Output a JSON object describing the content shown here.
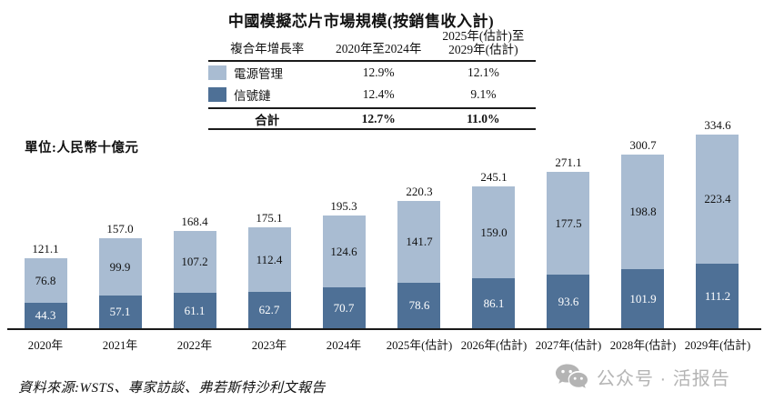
{
  "title": "中國模擬芯片市場規模(按銷售收入計)",
  "table": {
    "header": {
      "col1": "複合年增長率",
      "col2": "2020年至2024年",
      "col3_line1": "2025年(估計)至",
      "col3_line2": "2029年(估計)"
    },
    "rows": [
      {
        "label": "電源管理",
        "cagr_2020_2024": "12.9%",
        "cagr_2025_2029": "12.1%"
      },
      {
        "label": "信號鏈",
        "cagr_2020_2024": "12.4%",
        "cagr_2025_2029": "9.1%"
      }
    ],
    "total": {
      "label": "合計",
      "cagr_2020_2024": "12.7%",
      "cagr_2025_2029": "11.0%"
    }
  },
  "unit_label": "單位:人民幣十億元",
  "source": "資料來源:WSTS、專家訪談、弗若斯特沙利文報告",
  "watermark": {
    "icon": "wechat-icon",
    "text": "公众号 · 活报告",
    "color": "#b4b4b4"
  },
  "colors": {
    "power_management": "#a9bcd2",
    "signal_chain": "#4e7096",
    "axis": "#1a1a1a"
  },
  "chart_data": {
    "type": "bar",
    "stacked": true,
    "title": "中國模擬芯片市場規模(按銷售收入計)",
    "ylabel": "人民幣十億元",
    "grid": false,
    "legend_position": "table-top-left",
    "categories": [
      "2020年",
      "2021年",
      "2022年",
      "2023年",
      "2024年",
      "2025年(估計)",
      "2026年(估計)",
      "2027年(估計)",
      "2028年(估計)",
      "2029年(估計)"
    ],
    "series": [
      {
        "name": "信號鏈",
        "color": "#4e7096",
        "values": [
          44.3,
          57.1,
          61.1,
          62.7,
          70.7,
          78.6,
          86.1,
          93.6,
          101.9,
          111.2
        ]
      },
      {
        "name": "電源管理",
        "color": "#a9bcd2",
        "values": [
          76.8,
          99.9,
          107.2,
          112.4,
          124.6,
          141.7,
          159.0,
          177.5,
          198.8,
          223.4
        ]
      }
    ],
    "totals": [
      121.1,
      157.0,
      168.4,
      175.1,
      195.3,
      220.3,
      245.1,
      271.1,
      300.7,
      334.6
    ],
    "ylim": [
      0,
      360
    ]
  }
}
